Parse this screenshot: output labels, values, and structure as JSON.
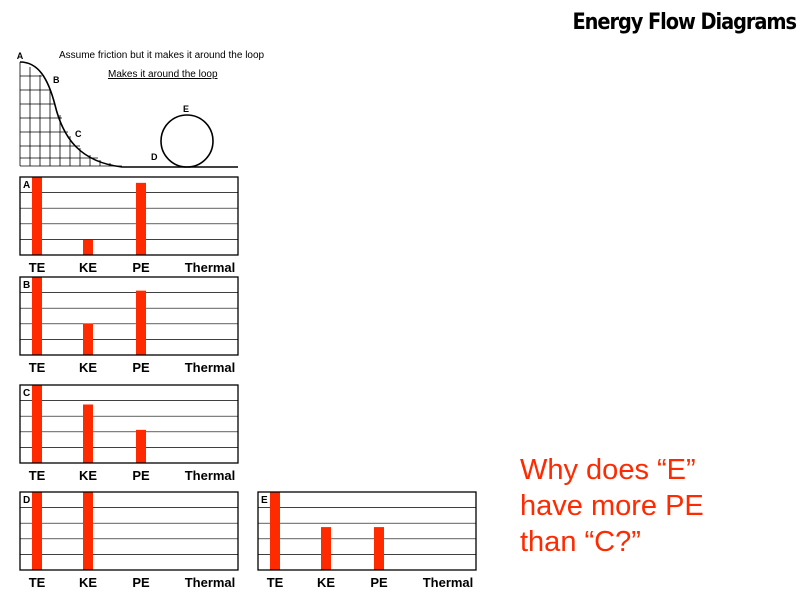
{
  "title": "Energy Flow Diagrams",
  "notes": {
    "line1": "Assume friction but it makes it around the loop",
    "line2": "Makes it around the loop"
  },
  "track": {
    "point_labels": [
      "A",
      "B",
      "C",
      "D",
      "E"
    ]
  },
  "question": {
    "line1": "Why does “E”",
    "line2": "have more PE",
    "line3": "than “C?”"
  },
  "colors": {
    "bar": "#ff2a00",
    "grid": "#000000",
    "question": "#ff2a00"
  },
  "chart_data": [
    {
      "type": "bar",
      "title": "A",
      "categories": [
        "TE",
        "KE",
        "PE",
        "Thermal"
      ],
      "values": [
        4,
        0.8,
        3.7,
        0
      ],
      "ylim": [
        0,
        4
      ],
      "grid": true
    },
    {
      "type": "bar",
      "title": "B",
      "categories": [
        "TE",
        "KE",
        "PE",
        "Thermal"
      ],
      "values": [
        4,
        1.6,
        3.3,
        0
      ],
      "ylim": [
        0,
        4
      ],
      "grid": true
    },
    {
      "type": "bar",
      "title": "C",
      "categories": [
        "TE",
        "KE",
        "PE",
        "Thermal"
      ],
      "values": [
        4,
        3.0,
        1.7,
        0
      ],
      "ylim": [
        0,
        4
      ],
      "grid": true
    },
    {
      "type": "bar",
      "title": "D",
      "categories": [
        "TE",
        "KE",
        "PE",
        "Thermal"
      ],
      "values": [
        4,
        4,
        0,
        0
      ],
      "ylim": [
        0,
        4
      ],
      "grid": true
    },
    {
      "type": "bar",
      "title": "E",
      "categories": [
        "TE",
        "KE",
        "PE",
        "Thermal"
      ],
      "values": [
        4,
        2.2,
        2.2,
        0
      ],
      "ylim": [
        0,
        4
      ],
      "grid": true
    }
  ]
}
